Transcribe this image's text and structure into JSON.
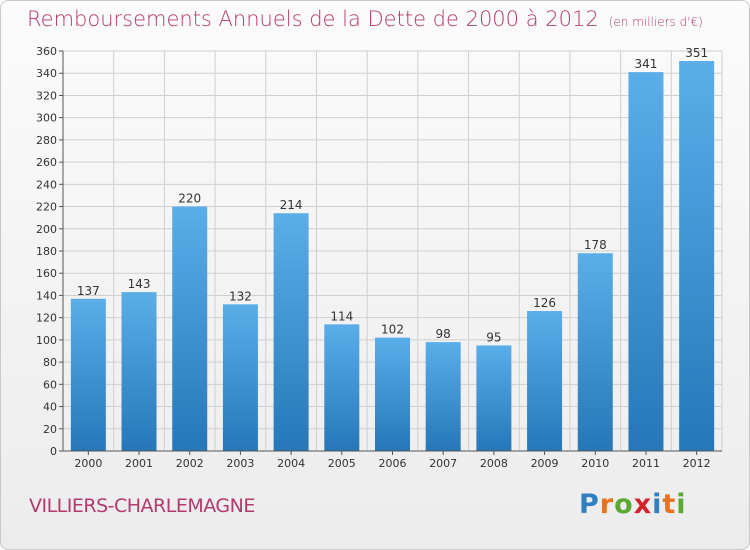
{
  "title": "Remboursements Annuels de la Dette de 2000 à 2012",
  "subtitle": "(en milliers d'€)",
  "city": "VILLIERS-CHARLEMAGNE",
  "logo": {
    "letters": [
      "P",
      "r",
      "o",
      "x",
      "i",
      "t",
      "i"
    ],
    "colors": [
      "#2f7fc1",
      "#e8731e",
      "#5ba832",
      "#d4232a",
      "#2f7fc1",
      "#e8731e",
      "#5ba832"
    ]
  },
  "colors": {
    "bar_light": "#5aaee9",
    "bar_dark": "#2677b8",
    "grid": "#cfcfcf",
    "axis": "#555555",
    "text": "#333333",
    "accent": "#b23a6e"
  },
  "chart_data": {
    "type": "bar",
    "title": "Remboursements Annuels de la Dette de 2000 à 2012",
    "subtitle": "(en milliers d'€)",
    "categories": [
      "2000",
      "2001",
      "2002",
      "2003",
      "2004",
      "2005",
      "2006",
      "2007",
      "2008",
      "2009",
      "2010",
      "2011",
      "2012"
    ],
    "values": [
      137,
      143,
      220,
      132,
      214,
      114,
      102,
      98,
      95,
      126,
      178,
      341,
      351
    ],
    "ylim": [
      0,
      360
    ],
    "yticks": [
      0,
      20,
      40,
      60,
      80,
      100,
      120,
      140,
      160,
      180,
      200,
      220,
      240,
      260,
      280,
      300,
      320,
      340,
      360
    ],
    "grid": true,
    "data_labels": true
  }
}
